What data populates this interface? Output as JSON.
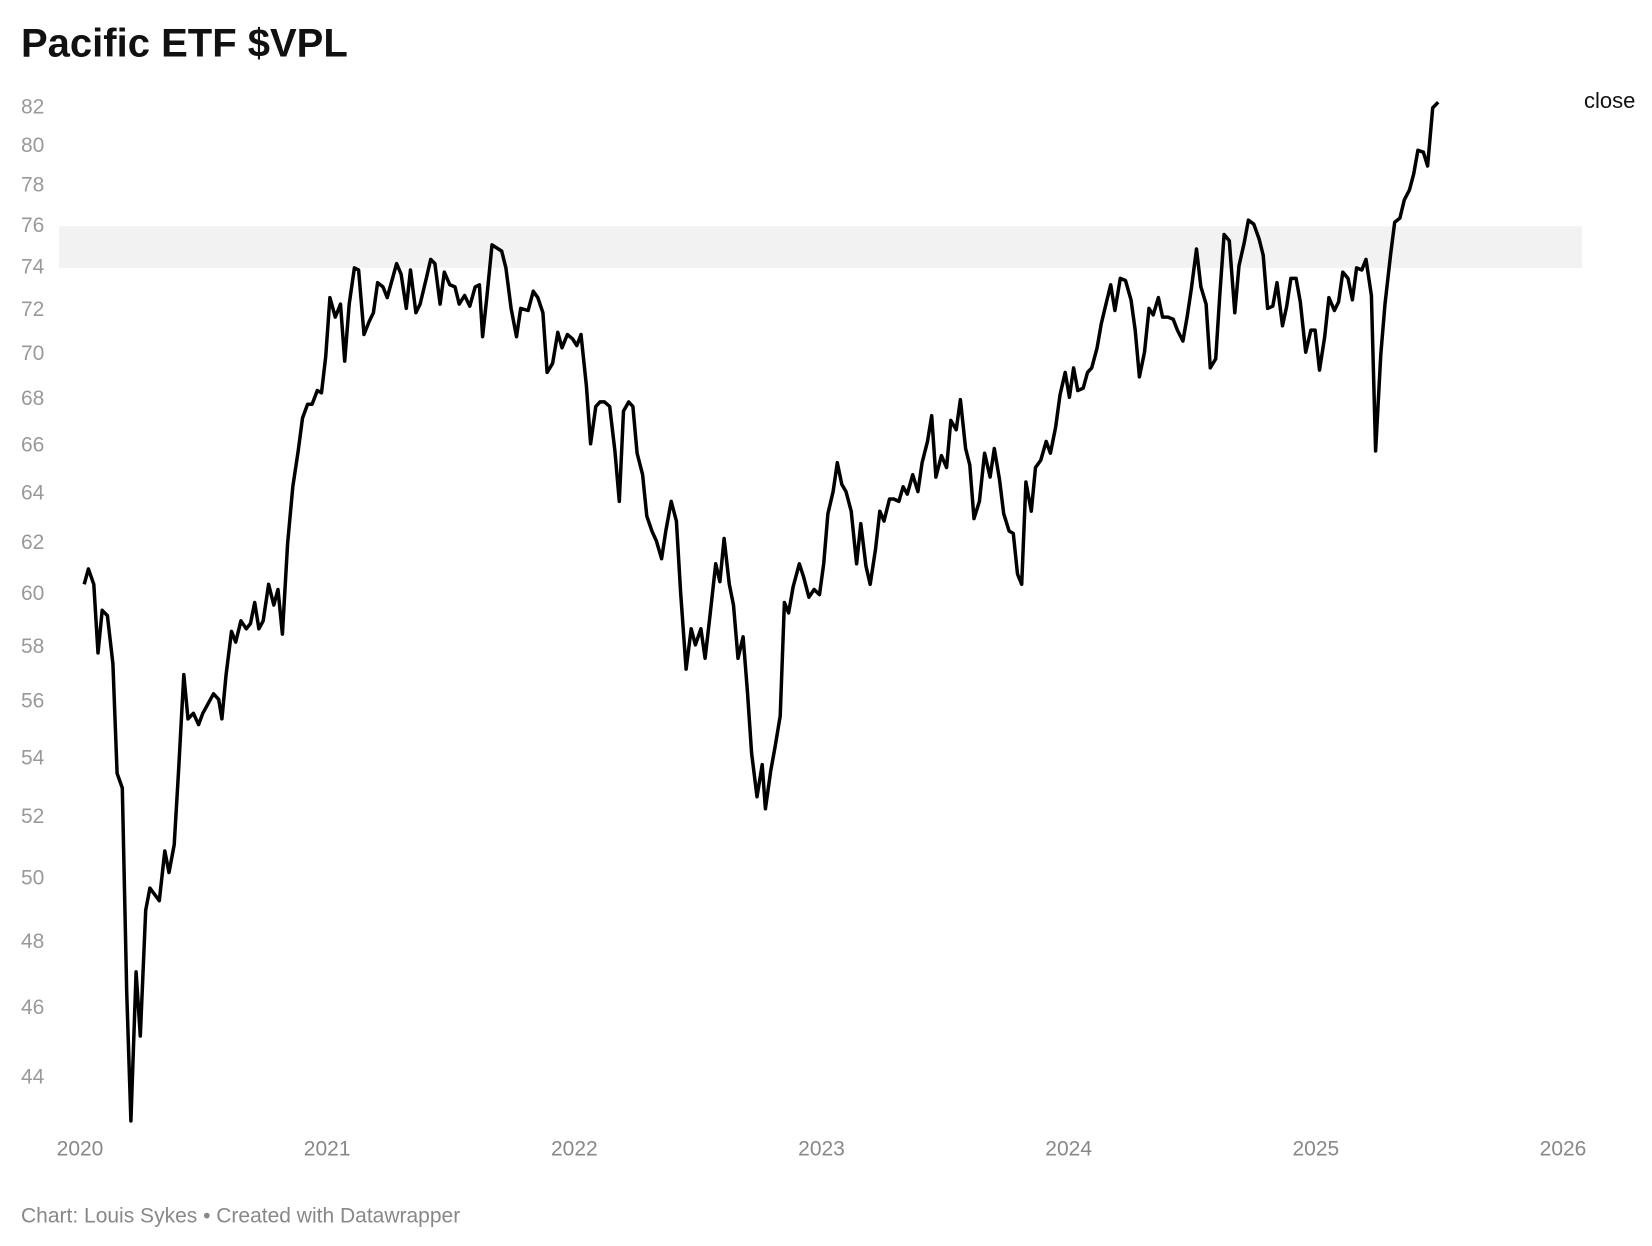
{
  "chart_data": {
    "type": "line",
    "title": "Pacific ETF $VPL",
    "footer": "Chart: Louis Sykes • Created with Datawrapper",
    "log_scale": true,
    "highlight_range": [
      74,
      76
    ],
    "xlim": [
      2020,
      2026
    ],
    "xticks": [
      2020,
      2021,
      2022,
      2023,
      2024,
      2025,
      2026
    ],
    "ylim": [
      42.5,
      83
    ],
    "yticks": [
      44,
      46,
      48,
      50,
      52,
      54,
      56,
      58,
      60,
      62,
      64,
      66,
      68,
      70,
      72,
      74,
      76,
      78,
      80,
      82
    ],
    "x": [
      2020.017,
      2020.034,
      2020.056,
      2020.073,
      2020.09,
      2020.111,
      2020.133,
      2020.15,
      2020.171,
      2020.189,
      2020.206,
      2020.227,
      2020.244,
      2020.266,
      2020.283,
      2020.321,
      2020.343,
      2020.36,
      2020.381,
      2020.399,
      2020.42,
      2020.437,
      2020.459,
      2020.48,
      2020.497,
      2020.54,
      2020.561,
      2020.574,
      2020.591,
      2020.613,
      2020.63,
      2020.651,
      2020.673,
      2020.69,
      2020.707,
      2020.724,
      2020.741,
      2020.763,
      2020.784,
      2020.801,
      2020.819,
      2020.84,
      2020.861,
      2020.883,
      2020.9,
      2020.921,
      2020.939,
      2020.96,
      2020.977,
      2020.994,
      2021.011,
      2021.033,
      2021.054,
      2021.071,
      2021.089,
      2021.11,
      2021.127,
      2021.149,
      2021.17,
      2021.187,
      2021.204,
      2021.226,
      2021.243,
      2021.281,
      2021.299,
      2021.32,
      2021.337,
      2021.359,
      2021.376,
      2021.401,
      2021.419,
      2021.436,
      2021.457,
      2021.474,
      2021.496,
      2021.517,
      2021.534,
      2021.556,
      2021.577,
      2021.599,
      2021.616,
      2021.629,
      2021.646,
      2021.667,
      2021.706,
      2021.723,
      2021.744,
      2021.766,
      2021.783,
      2021.813,
      2021.834,
      2021.852,
      2021.873,
      2021.89,
      2021.912,
      2021.933,
      2021.95,
      2021.972,
      2021.993,
      2022.01,
      2022.027,
      2022.049,
      2022.066,
      2022.087,
      2022.104,
      2022.122,
      2022.143,
      2022.164,
      2022.182,
      2022.199,
      2022.22,
      2022.237,
      2022.254,
      2022.276,
      2022.293,
      2022.314,
      2022.332,
      2022.353,
      2022.37,
      2022.392,
      2022.413,
      2022.43,
      2022.452,
      2022.473,
      2022.49,
      2022.512,
      2022.529,
      2022.55,
      2022.572,
      2022.589,
      2022.606,
      2022.627,
      2022.644,
      2022.662,
      2022.683,
      2022.7,
      2022.717,
      2022.739,
      2022.76,
      2022.773,
      2022.795,
      2022.812,
      2022.833,
      2022.85,
      2022.867,
      2022.885,
      2022.91,
      2022.927,
      2022.949,
      2022.97,
      2022.992,
      2023.009,
      2023.026,
      2023.047,
      2023.064,
      2023.082,
      2023.099,
      2023.12,
      2023.142,
      2023.159,
      2023.18,
      2023.197,
      2023.219,
      2023.236,
      2023.253,
      2023.275,
      2023.292,
      2023.313,
      2023.33,
      2023.347,
      2023.369,
      2023.39,
      2023.407,
      2023.429,
      2023.446,
      2023.463,
      2023.485,
      2023.506,
      2023.523,
      2023.545,
      2023.562,
      2023.583,
      2023.6,
      2023.617,
      2023.639,
      2023.66,
      2023.682,
      2023.699,
      2023.72,
      2023.737,
      2023.759,
      2023.776,
      2023.793,
      2023.81,
      2023.827,
      2023.849,
      2023.866,
      2023.887,
      2023.909,
      2023.926,
      2023.947,
      2023.965,
      2023.986,
      2024.003,
      2024.02,
      2024.037,
      2024.059,
      2024.076,
      2024.093,
      2024.115,
      2024.132,
      2024.153,
      2024.17,
      2024.187,
      2024.209,
      2024.23,
      2024.252,
      2024.269,
      2024.286,
      2024.307,
      2024.325,
      2024.342,
      2024.363,
      2024.38,
      2024.402,
      2024.423,
      2024.44,
      2024.462,
      2024.479,
      2024.496,
      2024.517,
      2024.535,
      2024.556,
      2024.573,
      2024.595,
      2024.612,
      2024.629,
      2024.65,
      2024.672,
      2024.689,
      2024.71,
      2024.727,
      2024.749,
      2024.77,
      2024.787,
      2024.805,
      2024.826,
      2024.843,
      2024.865,
      2024.882,
      2024.899,
      2024.92,
      2024.937,
      2024.959,
      2024.98,
      2024.997,
      2025.015,
      2025.036,
      2025.053,
      2025.075,
      2025.092,
      2025.109,
      2025.13,
      2025.148,
      2025.165,
      2025.186,
      2025.203,
      2025.225,
      2025.242,
      2025.263,
      2025.28,
      2025.302,
      2025.319,
      2025.34,
      2025.358,
      2025.379,
      2025.396,
      2025.413,
      2025.435,
      2025.452,
      2025.473,
      2025.495
    ],
    "series": [
      {
        "name": "close",
        "color": "#000000",
        "values": [
          60.4,
          61.0,
          60.4,
          57.8,
          59.4,
          59.2,
          57.4,
          53.5,
          53.0,
          46.5,
          42.8,
          47.1,
          45.2,
          49.0,
          49.7,
          49.3,
          50.9,
          50.2,
          51.1,
          53.6,
          57.0,
          55.4,
          55.6,
          55.2,
          55.6,
          56.3,
          56.1,
          55.4,
          57.0,
          58.6,
          58.2,
          59.0,
          58.7,
          58.9,
          59.7,
          58.7,
          59.0,
          60.4,
          59.6,
          60.2,
          58.5,
          62.0,
          64.3,
          65.8,
          67.2,
          67.8,
          67.8,
          68.4,
          68.3,
          69.9,
          72.6,
          71.7,
          72.3,
          69.7,
          72.3,
          74.0,
          73.9,
          70.9,
          71.5,
          71.9,
          73.3,
          73.1,
          72.6,
          74.2,
          73.7,
          72.1,
          73.9,
          71.9,
          72.3,
          73.5,
          74.4,
          74.2,
          72.3,
          73.8,
          73.2,
          73.1,
          72.3,
          72.7,
          72.2,
          73.1,
          73.2,
          70.8,
          72.6,
          75.1,
          74.8,
          74.0,
          72.1,
          70.8,
          72.1,
          72.0,
          72.9,
          72.6,
          71.9,
          69.2,
          69.6,
          71.0,
          70.3,
          70.9,
          70.7,
          70.4,
          70.9,
          68.6,
          66.1,
          67.7,
          67.9,
          67.9,
          67.7,
          65.8,
          63.7,
          67.5,
          67.9,
          67.7,
          65.7,
          64.8,
          63.1,
          62.5,
          62.1,
          61.4,
          62.5,
          63.7,
          62.9,
          60.1,
          57.2,
          58.7,
          58.1,
          58.7,
          57.6,
          59.3,
          61.2,
          60.5,
          62.2,
          60.4,
          59.6,
          57.6,
          58.4,
          56.4,
          54.2,
          52.7,
          53.8,
          52.3,
          53.6,
          54.4,
          55.5,
          59.7,
          59.3,
          60.3,
          61.2,
          60.7,
          59.9,
          60.2,
          60.0,
          61.2,
          63.2,
          64.1,
          65.3,
          64.4,
          64.1,
          63.3,
          61.2,
          62.8,
          61.1,
          60.4,
          61.8,
          63.3,
          62.9,
          63.8,
          63.8,
          63.7,
          64.3,
          64.0,
          64.8,
          64.1,
          65.3,
          66.2,
          67.3,
          64.7,
          65.6,
          65.1,
          67.1,
          66.7,
          68.0,
          65.9,
          65.2,
          63.0,
          63.7,
          65.7,
          64.7,
          65.9,
          64.6,
          63.2,
          62.5,
          62.4,
          60.8,
          60.4,
          64.5,
          63.3,
          65.1,
          65.4,
          66.2,
          65.7,
          66.8,
          68.2,
          69.2,
          68.1,
          69.4,
          68.4,
          68.5,
          69.2,
          69.4,
          70.3,
          71.4,
          72.4,
          73.2,
          72.0,
          73.5,
          73.4,
          72.5,
          71.1,
          69.0,
          70.1,
          72.1,
          71.8,
          72.6,
          71.7,
          71.7,
          71.6,
          71.1,
          70.6,
          71.7,
          73.0,
          74.9,
          73.1,
          72.3,
          69.4,
          69.8,
          72.8,
          75.6,
          75.3,
          71.9,
          74.1,
          75.2,
          76.3,
          76.1,
          75.4,
          74.6,
          72.1,
          72.2,
          73.3,
          71.3,
          72.2,
          73.5,
          73.5,
          72.4,
          70.1,
          71.1,
          71.1,
          69.3,
          70.8,
          72.6,
          72.0,
          72.4,
          73.8,
          73.5,
          72.5,
          74.0,
          73.9,
          74.4,
          72.7,
          65.8,
          70.0,
          72.3,
          74.6,
          76.2,
          76.4,
          77.3,
          77.8,
          78.6,
          79.8,
          79.7,
          79.0,
          82.0,
          82.3
        ]
      }
    ]
  }
}
